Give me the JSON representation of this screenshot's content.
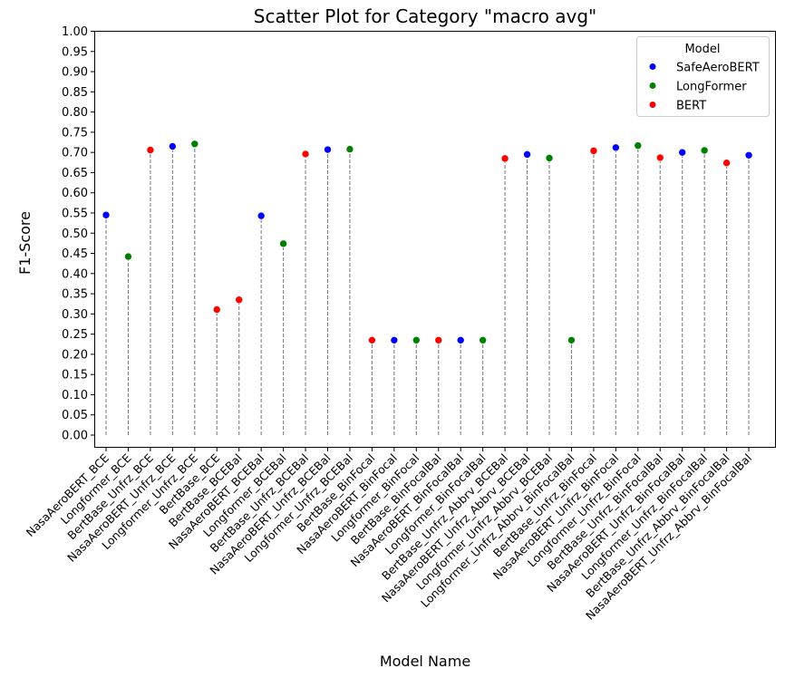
{
  "chart_data": {
    "type": "scatter",
    "title": "Scatter Plot for Category \"macro avg\"",
    "xlabel": "Model Name",
    "ylabel": "F1-Score",
    "ylim": [
      0.0,
      1.0
    ],
    "yticks": [
      "0.00",
      "0.05",
      "0.10",
      "0.15",
      "0.20",
      "0.25",
      "0.30",
      "0.35",
      "0.40",
      "0.45",
      "0.50",
      "0.55",
      "0.60",
      "0.65",
      "0.70",
      "0.75",
      "0.80",
      "0.85",
      "0.90",
      "0.95",
      "1.00"
    ],
    "grid": false,
    "stems": "dashed vertical lines from 0 to each point",
    "legend": {
      "title": "Model",
      "placement": "top-right",
      "entries": [
        {
          "name": "SafeAeroBERT",
          "color": "#0000ff"
        },
        {
          "name": "LongFormer",
          "color": "#008000"
        },
        {
          "name": "BERT",
          "color": "#ff0000"
        }
      ]
    },
    "categories": [
      "NasaAeroBERT_BCE",
      "Longformer_BCE",
      "BertBase_Unfrz_BCE",
      "NasaAeroBERT_Unfrz_BCE",
      "Longformer_Unfrz_BCE",
      "BertBase_BCE",
      "BertBase_BCEBal",
      "NasaAeroBERT_BCEBal",
      "Longformer_BCEBal",
      "BertBase_Unfrz_BCEBal",
      "NasaAeroBERT_Unfrz_BCEBal",
      "Longformer_Unfrz_BCEBal",
      "BertBase_BinFocal",
      "NasaAeroBERT_BinFocal",
      "Longformer_BinFocal",
      "BertBase_BinFocalBal",
      "NasaAeroBERT_BinFocalBal",
      "Longformer_BinFocalBal",
      "BertBase_Unfrz_Abbrv_BCEBal",
      "NasaAeroBERT_Unfrz_Abbrv_BCEBal",
      "Longformer_Unfrz_Abbrv_BCEBal",
      "Longformer_Unfrz_Abbrv_BinFocalBal",
      "BertBase_Unfrz_BinFocal",
      "NasaAeroBERT_Unfrz_BinFocal",
      "Longformer_Unfrz_BinFocal",
      "BertBase_Unfrz_BinFocalBal",
      "NasaAeroBERT_Unfrz_BinFocalBal",
      "Longformer_Unfrz_BinFocalBal",
      "BertBase_Unfrz_Abbrv_BinFocalBal",
      "NasaAeroBERT_Unfrz_Abbrv_BinFocalBal"
    ],
    "series": [
      {
        "name": "SafeAeroBERT",
        "color": "#0000ff",
        "points": [
          {
            "x": "NasaAeroBERT_BCE",
            "y": 0.545
          },
          {
            "x": "NasaAeroBERT_Unfrz_BCE",
            "y": 0.715
          },
          {
            "x": "NasaAeroBERT_BCEBal",
            "y": 0.543
          },
          {
            "x": "NasaAeroBERT_Unfrz_BCEBal",
            "y": 0.707
          },
          {
            "x": "NasaAeroBERT_BinFocal",
            "y": 0.235
          },
          {
            "x": "NasaAeroBERT_BinFocalBal",
            "y": 0.235
          },
          {
            "x": "NasaAeroBERT_Unfrz_Abbrv_BCEBal",
            "y": 0.695
          },
          {
            "x": "NasaAeroBERT_Unfrz_BinFocal",
            "y": 0.712
          },
          {
            "x": "NasaAeroBERT_Unfrz_BinFocalBal",
            "y": 0.7
          },
          {
            "x": "NasaAeroBERT_Unfrz_Abbrv_BinFocalBal",
            "y": 0.693
          }
        ]
      },
      {
        "name": "LongFormer",
        "color": "#008000",
        "points": [
          {
            "x": "Longformer_BCE",
            "y": 0.442
          },
          {
            "x": "Longformer_Unfrz_BCE",
            "y": 0.721
          },
          {
            "x": "Longformer_BCEBal",
            "y": 0.474
          },
          {
            "x": "Longformer_Unfrz_BCEBal",
            "y": 0.708
          },
          {
            "x": "Longformer_BinFocal",
            "y": 0.235
          },
          {
            "x": "Longformer_BinFocalBal",
            "y": 0.235
          },
          {
            "x": "Longformer_Unfrz_Abbrv_BCEBal",
            "y": 0.686
          },
          {
            "x": "Longformer_Unfrz_Abbrv_BinFocalBal",
            "y": 0.235
          },
          {
            "x": "Longformer_Unfrz_BinFocal",
            "y": 0.717
          },
          {
            "x": "Longformer_Unfrz_BinFocalBal",
            "y": 0.705
          }
        ]
      },
      {
        "name": "BERT",
        "color": "#ff0000",
        "points": [
          {
            "x": "BertBase_Unfrz_BCE",
            "y": 0.706
          },
          {
            "x": "BertBase_BCE",
            "y": 0.311
          },
          {
            "x": "BertBase_BCEBal",
            "y": 0.335
          },
          {
            "x": "BertBase_Unfrz_BCEBal",
            "y": 0.696
          },
          {
            "x": "BertBase_BinFocal",
            "y": 0.235
          },
          {
            "x": "BertBase_BinFocalBal",
            "y": 0.235
          },
          {
            "x": "BertBase_Unfrz_Abbrv_BCEBal",
            "y": 0.685
          },
          {
            "x": "BertBase_Unfrz_BinFocal",
            "y": 0.704
          },
          {
            "x": "BertBase_Unfrz_BinFocalBal",
            "y": 0.687
          },
          {
            "x": "BertBase_Unfrz_Abbrv_BinFocalBal",
            "y": 0.674
          }
        ]
      }
    ]
  }
}
